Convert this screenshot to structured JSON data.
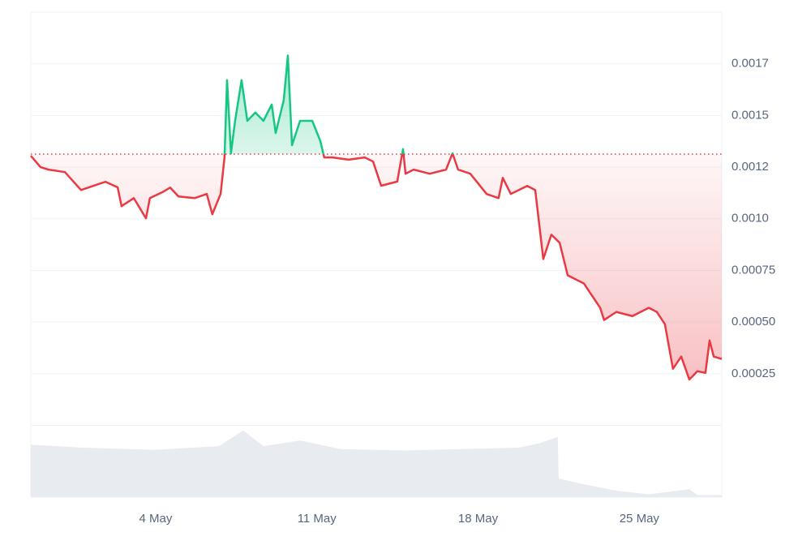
{
  "chart_data": {
    "type": "line",
    "x": [
      -1.42,
      -1.0,
      -0.65,
      0.06,
      0.76,
      1.29,
      1.82,
      2.35,
      2.52,
      3.05,
      3.58,
      3.75,
      4.28,
      4.63,
      4.99,
      5.69,
      6.22,
      6.46,
      6.82,
      6.99,
      7.1,
      7.27,
      7.45,
      7.73,
      7.98,
      8.33,
      8.68,
      9.04,
      9.21,
      9.56,
      9.74,
      9.92,
      10.27,
      10.8,
      11.15,
      11.32,
      11.68,
      12.38,
      13.08,
      13.44,
      13.79,
      14.49,
      14.74,
      14.85,
      15.2,
      15.9,
      16.61,
      16.89,
      17.13,
      17.66,
      18.37,
      18.89,
      19.07,
      19.42,
      20.13,
      20.48,
      20.83,
      21.18,
      21.54,
      21.89,
      22.59,
      23.3,
      23.47,
      24.0,
      24.7,
      25.41,
      25.76,
      26.11,
      26.46,
      26.82,
      27.17,
      27.52,
      27.87,
      28.05,
      28.23,
      28.58
    ],
    "values": [
      0.001305,
      0.00125,
      0.001238,
      0.001226,
      0.001139,
      0.001159,
      0.001179,
      0.001152,
      0.001061,
      0.0011,
      0.001002,
      0.0011,
      0.001128,
      0.001151,
      0.001108,
      0.0011,
      0.00112,
      0.001022,
      0.00112,
      0.001297,
      0.001671,
      0.001317,
      0.001474,
      0.001671,
      0.001474,
      0.001514,
      0.001474,
      0.001553,
      0.001415,
      0.001573,
      0.00179,
      0.001356,
      0.001474,
      0.001474,
      0.001376,
      0.001297,
      0.001297,
      0.001286,
      0.001297,
      0.001277,
      0.00116,
      0.00118,
      0.001337,
      0.001218,
      0.001238,
      0.001218,
      0.001238,
      0.001317,
      0.001238,
      0.001218,
      0.00112,
      0.0011,
      0.001198,
      0.00112,
      0.001159,
      0.001139,
      0.000805,
      0.000923,
      0.000884,
      0.000726,
      0.000687,
      0.000569,
      0.00051,
      0.000549,
      0.000529,
      0.000569,
      0.000549,
      0.00049,
      0.000274,
      0.000333,
      0.000222,
      0.000262,
      0.000254,
      0.000411,
      0.000333,
      0.000321
    ],
    "baseline": 0.001313,
    "color_up": "#16c784",
    "color_down": "#ea3943",
    "xlim": [
      -1.42,
      28.58
    ],
    "xticks": [
      {
        "value": 4,
        "label": "4 May"
      },
      {
        "value": 11,
        "label": "11 May"
      },
      {
        "value": 18,
        "label": "18 May"
      },
      {
        "value": 25,
        "label": "25 May"
      }
    ],
    "ylim": [
      0,
      0.002
    ],
    "yticks": [
      {
        "value": 0.00025,
        "label": "0.00025"
      },
      {
        "value": 0.0005,
        "label": "0.00050"
      },
      {
        "value": 0.00075,
        "label": "0.00075"
      },
      {
        "value": 0.001,
        "label": "0.0010"
      },
      {
        "value": 0.00125,
        "label": "0.0012"
      },
      {
        "value": 0.0015,
        "label": "0.0015"
      },
      {
        "value": 0.00175,
        "label": "0.0017"
      }
    ],
    "grid": true,
    "volume": {
      "x": [
        -1.42,
        0.76,
        3.93,
        6.75,
        7.8,
        8.68,
        10.27,
        12.03,
        14.85,
        19.77,
        20.65,
        21.46,
        21.5,
        22.59,
        24.0,
        25.41,
        27.17,
        27.52,
        28.58
      ],
      "values": [
        73,
        69,
        66,
        71,
        93,
        71,
        79,
        67,
        65,
        69,
        75,
        84,
        26,
        18,
        9,
        4,
        11,
        3,
        3
      ],
      "ylim": [
        0,
        100
      ],
      "color": "#e8ecf0"
    }
  }
}
